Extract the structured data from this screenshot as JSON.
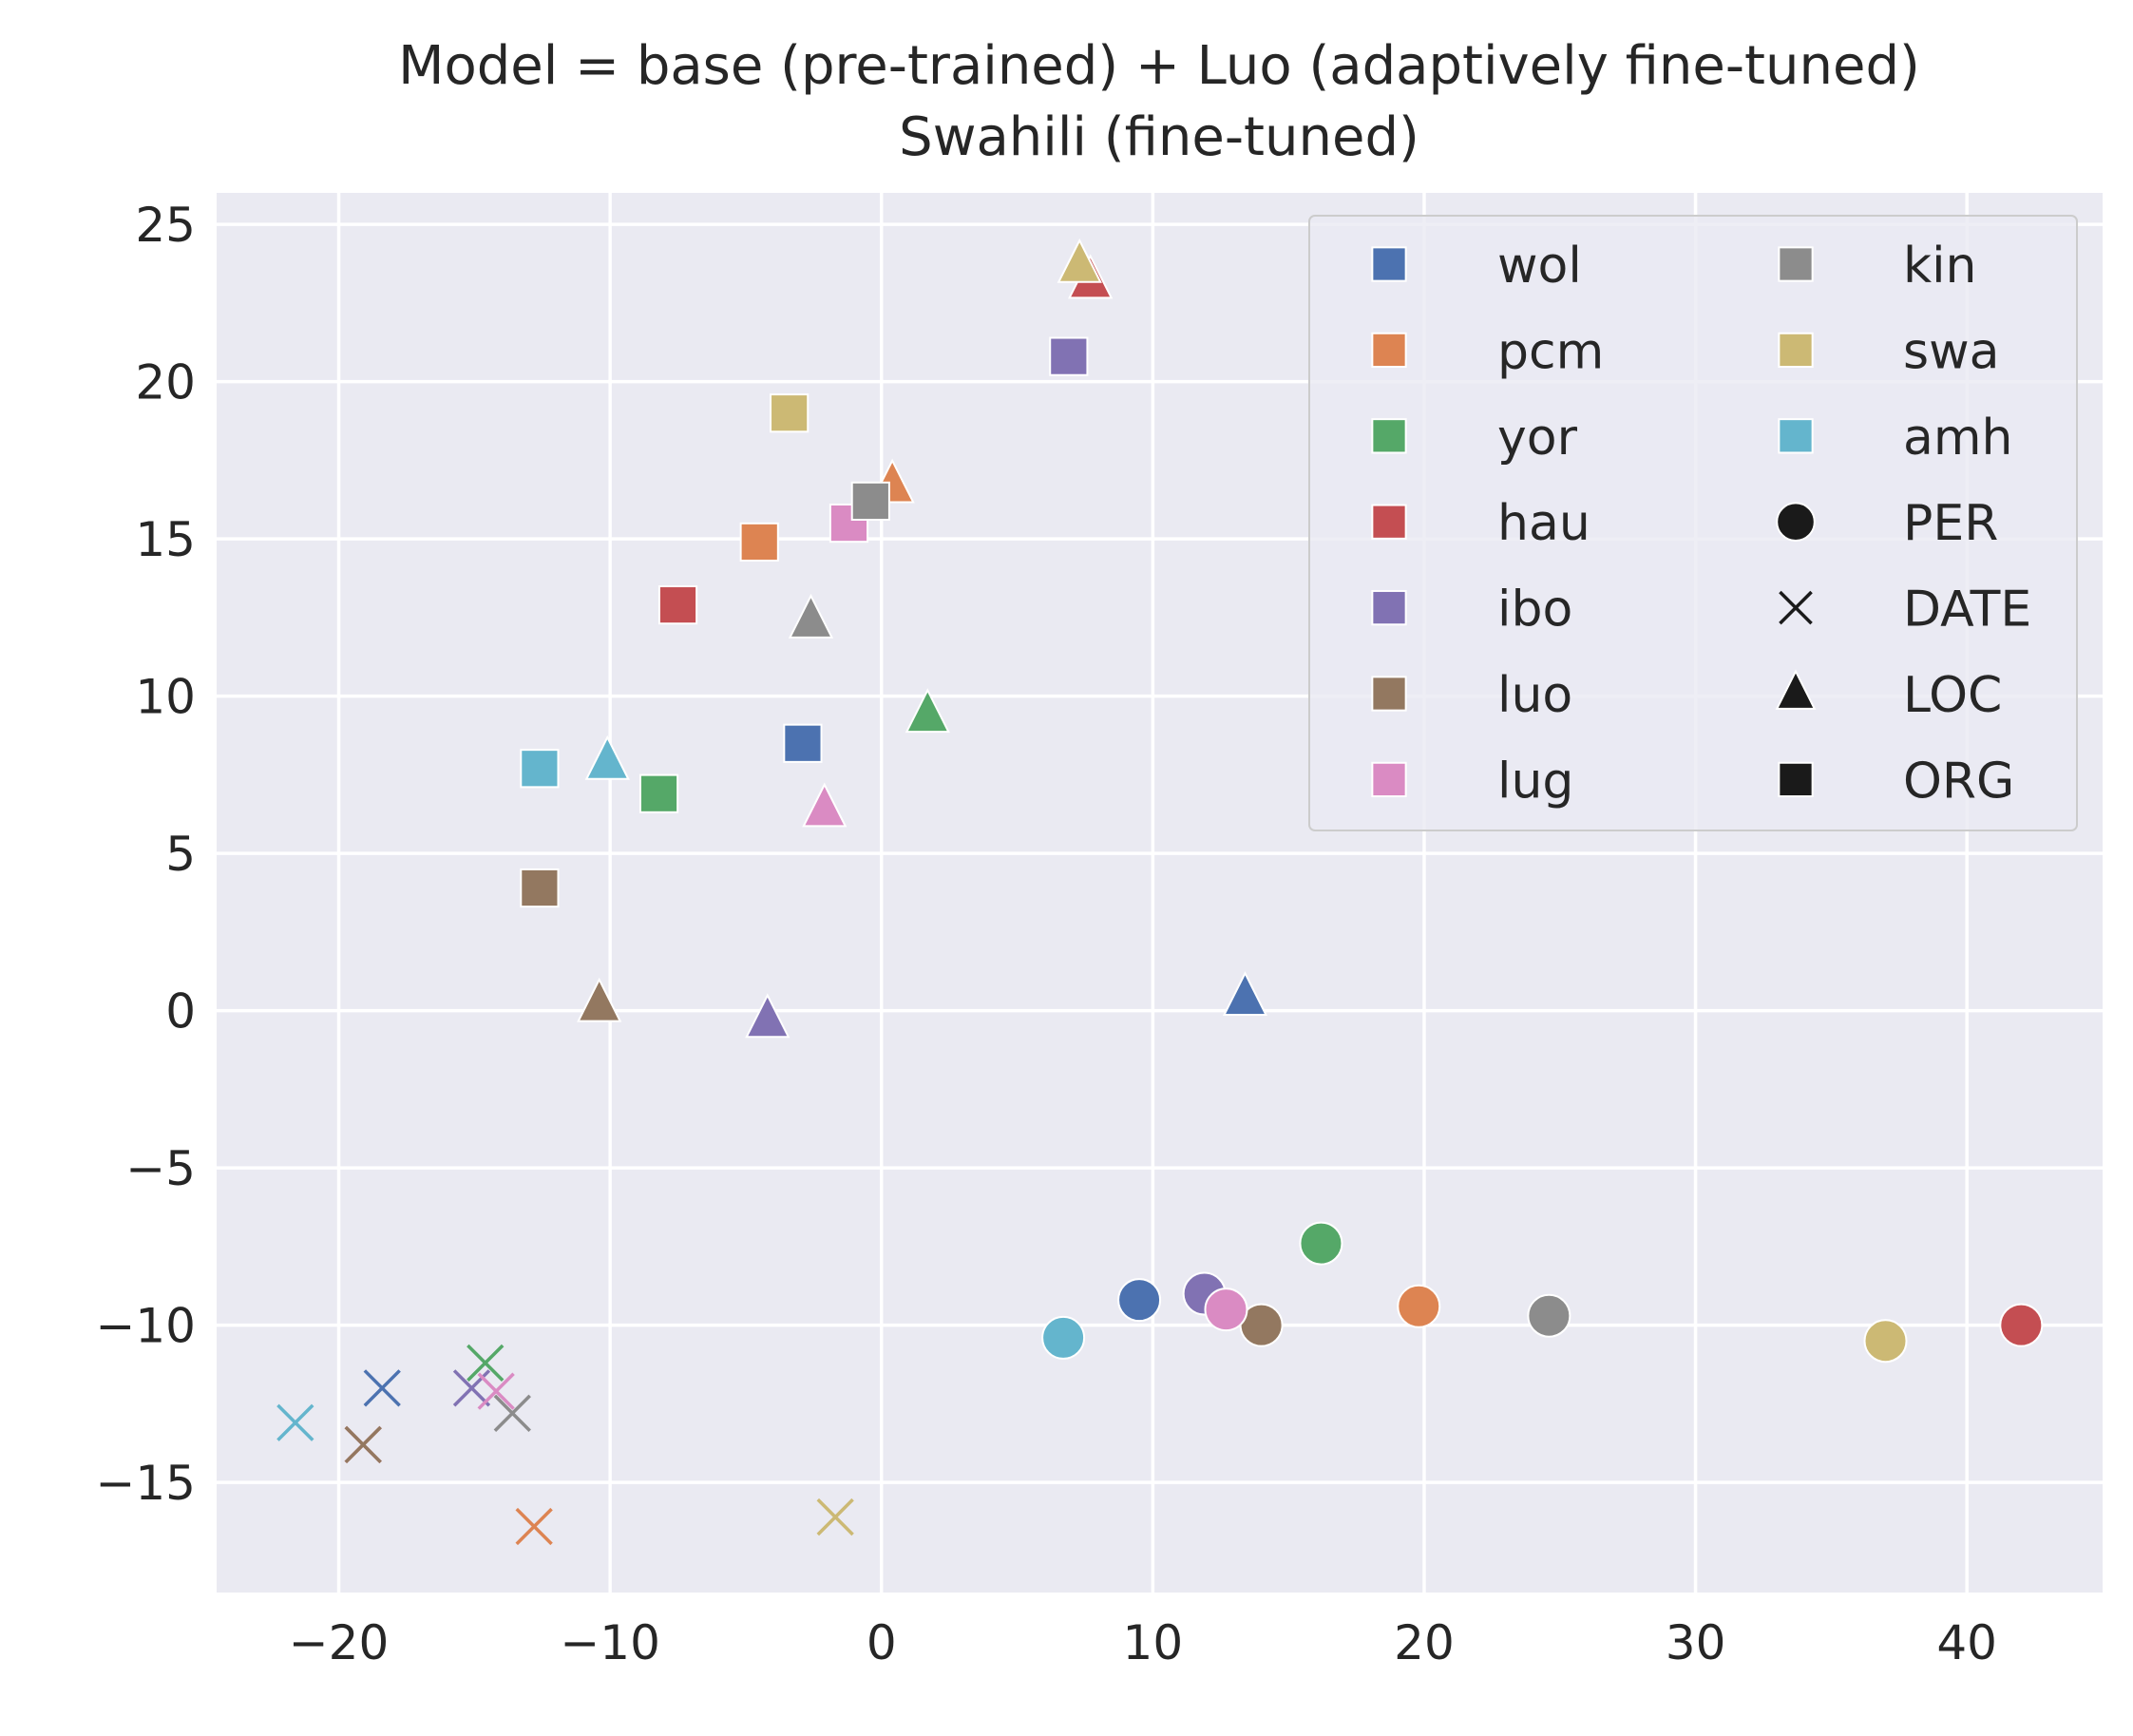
{
  "chart_data": {
    "type": "scatter",
    "title": [
      "Model = base (pre-trained) + Luo (adaptively fine-tuned)",
      "Swahili (fine-tuned)"
    ],
    "xlabel": "",
    "ylabel": "",
    "xlim": [
      -24.5,
      45
    ],
    "ylim": [
      -18.5,
      26
    ],
    "xticks": [
      -20,
      -10,
      0,
      10,
      20,
      30,
      40
    ],
    "yticks": [
      -15,
      -10,
      -5,
      0,
      5,
      10,
      15,
      20,
      25
    ],
    "xtick_labels": [
      "−20",
      "−10",
      "0",
      "10",
      "20",
      "30",
      "40"
    ],
    "ytick_labels": [
      "−15",
      "−10",
      "−5",
      "0",
      "5",
      "10",
      "15",
      "20",
      "25"
    ],
    "grid": true,
    "legend_position": "top-right",
    "languages": [
      {
        "name": "wol",
        "color": "#4c72b0"
      },
      {
        "name": "pcm",
        "color": "#dd8452"
      },
      {
        "name": "yor",
        "color": "#55a868"
      },
      {
        "name": "hau",
        "color": "#c44e52"
      },
      {
        "name": "ibo",
        "color": "#8172b3"
      },
      {
        "name": "luo",
        "color": "#937860"
      },
      {
        "name": "lug",
        "color": "#da8bc3"
      },
      {
        "name": "kin",
        "color": "#8c8c8c"
      },
      {
        "name": "swa",
        "color": "#ccb974"
      },
      {
        "name": "amh",
        "color": "#64b5cd"
      }
    ],
    "entity_types": [
      {
        "name": "PER",
        "marker": "circle"
      },
      {
        "name": "DATE",
        "marker": "x"
      },
      {
        "name": "LOC",
        "marker": "triangle"
      },
      {
        "name": "ORG",
        "marker": "square"
      }
    ],
    "points": [
      {
        "lang": "wol",
        "type": "PER",
        "x": 9.5,
        "y": -9.2
      },
      {
        "lang": "pcm",
        "type": "PER",
        "x": 19.8,
        "y": -9.4
      },
      {
        "lang": "yor",
        "type": "PER",
        "x": 16.2,
        "y": -7.4
      },
      {
        "lang": "hau",
        "type": "PER",
        "x": 42.0,
        "y": -10.0
      },
      {
        "lang": "ibo",
        "type": "PER",
        "x": 11.9,
        "y": -9.0
      },
      {
        "lang": "luo",
        "type": "PER",
        "x": 14.0,
        "y": -10.0
      },
      {
        "lang": "lug",
        "type": "PER",
        "x": 12.7,
        "y": -9.5
      },
      {
        "lang": "kin",
        "type": "PER",
        "x": 24.6,
        "y": -9.7
      },
      {
        "lang": "swa",
        "type": "PER",
        "x": 37.0,
        "y": -10.5
      },
      {
        "lang": "amh",
        "type": "PER",
        "x": 6.7,
        "y": -10.4
      },
      {
        "lang": "wol",
        "type": "DATE",
        "x": -18.4,
        "y": -12.0
      },
      {
        "lang": "pcm",
        "type": "DATE",
        "x": -12.8,
        "y": -16.4
      },
      {
        "lang": "yor",
        "type": "DATE",
        "x": -14.6,
        "y": -11.2
      },
      {
        "lang": "hau",
        "type": "DATE",
        "x": -19.1,
        "y": -13.8
      },
      {
        "lang": "ibo",
        "type": "DATE",
        "x": -15.1,
        "y": -12.0
      },
      {
        "lang": "luo",
        "type": "DATE",
        "x": -19.1,
        "y": -13.8
      },
      {
        "lang": "lug",
        "type": "DATE",
        "x": -14.2,
        "y": -12.1
      },
      {
        "lang": "kin",
        "type": "DATE",
        "x": -13.6,
        "y": -12.8
      },
      {
        "lang": "swa",
        "type": "DATE",
        "x": -1.7,
        "y": -16.1
      },
      {
        "lang": "amh",
        "type": "DATE",
        "x": -21.6,
        "y": -13.1
      },
      {
        "lang": "wol",
        "type": "LOC",
        "x": 13.4,
        "y": 0.4
      },
      {
        "lang": "pcm",
        "type": "LOC",
        "x": 0.4,
        "y": 16.7
      },
      {
        "lang": "yor",
        "type": "LOC",
        "x": 1.7,
        "y": 9.4
      },
      {
        "lang": "hau",
        "type": "LOC",
        "x": 7.7,
        "y": 23.2
      },
      {
        "lang": "ibo",
        "type": "LOC",
        "x": -4.2,
        "y": -0.3
      },
      {
        "lang": "luo",
        "type": "LOC",
        "x": -10.4,
        "y": 0.2
      },
      {
        "lang": "lug",
        "type": "LOC",
        "x": -2.1,
        "y": 6.4
      },
      {
        "lang": "kin",
        "type": "LOC",
        "x": -2.6,
        "y": 12.4
      },
      {
        "lang": "swa",
        "type": "LOC",
        "x": 7.3,
        "y": 23.7
      },
      {
        "lang": "amh",
        "type": "LOC",
        "x": -10.1,
        "y": 7.9
      },
      {
        "lang": "wol",
        "type": "ORG",
        "x": -2.9,
        "y": 8.5
      },
      {
        "lang": "pcm",
        "type": "ORG",
        "x": -4.5,
        "y": 14.9
      },
      {
        "lang": "yor",
        "type": "ORG",
        "x": -8.2,
        "y": 6.9
      },
      {
        "lang": "hau",
        "type": "ORG",
        "x": -7.5,
        "y": 12.9
      },
      {
        "lang": "ibo",
        "type": "ORG",
        "x": 6.9,
        "y": 20.8
      },
      {
        "lang": "luo",
        "type": "ORG",
        "x": -12.6,
        "y": 3.9
      },
      {
        "lang": "lug",
        "type": "ORG",
        "x": -1.2,
        "y": 15.5
      },
      {
        "lang": "kin",
        "type": "ORG",
        "x": -0.4,
        "y": 16.2
      },
      {
        "lang": "swa",
        "type": "ORG",
        "x": -3.4,
        "y": 19.0
      },
      {
        "lang": "amh",
        "type": "ORG",
        "x": -12.6,
        "y": 7.7
      }
    ]
  }
}
